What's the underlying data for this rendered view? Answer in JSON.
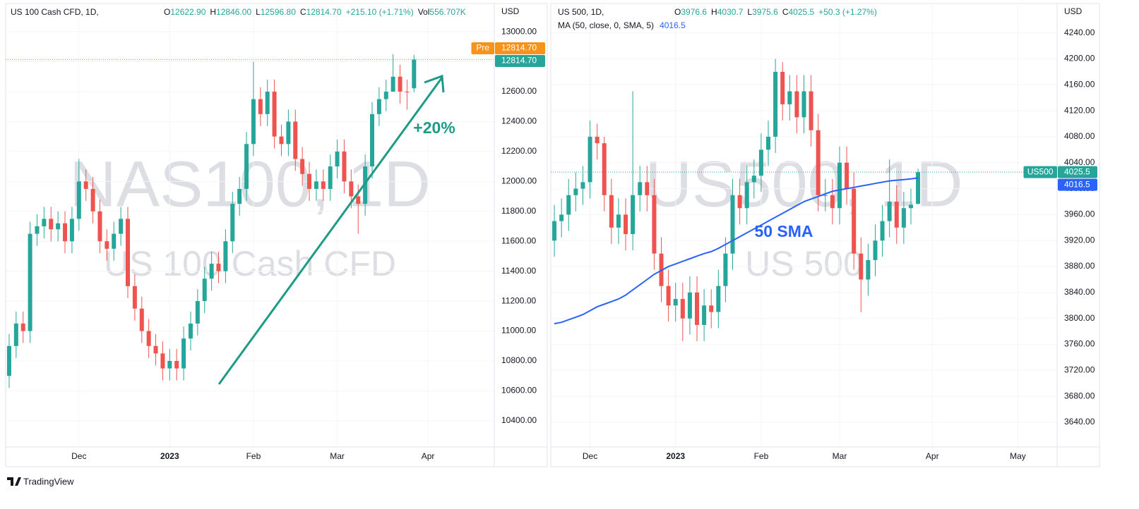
{
  "chart_data": [
    {
      "type": "candlestick",
      "symbol": "US 100 Cash CFD, 1D,",
      "legend": [
        {
          "key": "O",
          "value": "12622.90"
        },
        {
          "key": "H",
          "value": "12846.00"
        },
        {
          "key": "L",
          "value": "12596.80"
        },
        {
          "key": "C",
          "value": "12814.70"
        },
        {
          "value": "+215.10 (+1.71%)"
        },
        {
          "key": "Vol",
          "value": "556.707K"
        }
      ],
      "watermark": [
        "NAS100, 1D",
        "US 100 Cash CFD"
      ],
      "axis_unit": "USD",
      "up_color": "#26a69a",
      "down_color": "#ef5350",
      "grid": true,
      "ylim": [
        10225,
        13175
      ],
      "yticks": [
        {
          "value": 10400,
          "label": "10400.00"
        },
        {
          "value": 10600,
          "label": "10600.00"
        },
        {
          "value": 10800,
          "label": "10800.00"
        },
        {
          "value": 11000,
          "label": "11000.00"
        },
        {
          "value": 11200,
          "label": "11200.00"
        },
        {
          "value": 11400,
          "label": "11400.00"
        },
        {
          "value": 11600,
          "label": "11600.00"
        },
        {
          "value": 11800,
          "label": "11800.00"
        },
        {
          "value": 12000,
          "label": "12000.00"
        },
        {
          "value": 12200,
          "label": "12200.00"
        },
        {
          "value": 12400,
          "label": "12400.00"
        },
        {
          "value": 12600,
          "label": "12600.00"
        },
        {
          "value": 12800,
          "label": "12800.00"
        },
        {
          "value": 13000,
          "label": "13000.00"
        }
      ],
      "categories": [
        null,
        null,
        null,
        null,
        null,
        null,
        null,
        null,
        null,
        null,
        "Dec",
        null,
        null,
        null,
        null,
        null,
        null,
        null,
        null,
        null,
        null,
        null,
        null,
        "2023",
        null,
        null,
        null,
        null,
        null,
        null,
        null,
        null,
        null,
        null,
        null,
        "Feb",
        null,
        null,
        null,
        null,
        null,
        null,
        null,
        null,
        null,
        null,
        null,
        "Mar",
        null,
        null,
        null,
        null,
        null,
        null,
        null,
        null,
        null,
        null,
        null,
        null,
        "Apr",
        null,
        null,
        null,
        null,
        null,
        null,
        null,
        null,
        null
      ],
      "open": [
        10700,
        10900,
        11050,
        11000,
        11650,
        11700,
        11750,
        11680,
        11720,
        11600,
        11750,
        12000,
        11950,
        11800,
        11600,
        11550,
        11650,
        11750,
        11300,
        11150,
        11000,
        10900,
        10850,
        10750,
        10800,
        10750,
        10950,
        11050,
        11200,
        11350,
        11450,
        11400,
        11600,
        11850,
        11950,
        12250,
        12550,
        12450,
        12600,
        12300,
        12250,
        12400,
        12150,
        12050,
        11950,
        12000,
        11950,
        12100,
        12200,
        12000,
        11900,
        11850,
        12100,
        12450,
        12550,
        12600,
        12700,
        12600,
        12622.9,
        null,
        null,
        null,
        null,
        null,
        null,
        null,
        null,
        null,
        null,
        null
      ],
      "high": [
        10980,
        11130,
        11130,
        11730,
        11780,
        11830,
        11830,
        11800,
        11800,
        11830,
        12150,
        12080,
        12030,
        11880,
        11680,
        11730,
        11830,
        11830,
        11380,
        11230,
        11080,
        10980,
        10930,
        10880,
        10880,
        11030,
        11130,
        11280,
        11430,
        11530,
        11530,
        11680,
        11930,
        12030,
        12330,
        12800,
        12630,
        12680,
        12680,
        12380,
        12480,
        12480,
        12230,
        12130,
        12080,
        12080,
        12180,
        12280,
        12280,
        12080,
        11980,
        12180,
        12530,
        12630,
        12680,
        12850,
        12780,
        12680,
        12846,
        null,
        null,
        null,
        null,
        null,
        null,
        null,
        null,
        null,
        null,
        null
      ],
      "low": [
        10620,
        10820,
        10920,
        10920,
        11570,
        11620,
        11600,
        11600,
        11520,
        11520,
        11670,
        11870,
        11720,
        11520,
        11470,
        11470,
        11570,
        11220,
        11070,
        10920,
        10820,
        10770,
        10670,
        10670,
        10670,
        10670,
        10870,
        10970,
        11120,
        11270,
        11320,
        11320,
        11520,
        11770,
        11870,
        12170,
        12370,
        12370,
        12220,
        12170,
        12170,
        12070,
        11970,
        11870,
        11870,
        11870,
        11870,
        12020,
        11920,
        11820,
        11650,
        11770,
        12020,
        12370,
        12470,
        12620,
        12520,
        12480,
        12596.8,
        null,
        null,
        null,
        null,
        null,
        null,
        null,
        null,
        null,
        null,
        null
      ],
      "close": [
        10900,
        11050,
        11000,
        11650,
        11700,
        11750,
        11680,
        11720,
        11600,
        11750,
        12000,
        11950,
        11800,
        11600,
        11550,
        11650,
        11750,
        11300,
        11150,
        11000,
        10900,
        10850,
        10750,
        10800,
        10750,
        10950,
        11050,
        11200,
        11350,
        11450,
        11400,
        11600,
        11850,
        11950,
        12250,
        12550,
        12450,
        12600,
        12300,
        12250,
        12400,
        12150,
        12050,
        11950,
        12000,
        11950,
        12100,
        12200,
        12000,
        11900,
        11850,
        12100,
        12450,
        12550,
        12600,
        12700,
        12600,
        12599.6,
        12814.7,
        null,
        null,
        null,
        null,
        null,
        null,
        null,
        null,
        null,
        null,
        null
      ],
      "price_labels": [
        {
          "tag": "Pre",
          "value": 12814.7,
          "label": "12814.70",
          "color": "#f7931a"
        },
        {
          "value": 12814.7,
          "label": "12814.70",
          "color": "#26a69a"
        }
      ],
      "annotations": [
        {
          "text": "+20%",
          "color": "#1e9b86"
        }
      ]
    },
    {
      "type": "candlestick",
      "symbol": "US 500, 1D,",
      "legend": [
        {
          "key": "O",
          "value": "3976.6"
        },
        {
          "key": "H",
          "value": "4030.7"
        },
        {
          "key": "L",
          "value": "3975.6"
        },
        {
          "key": "C",
          "value": "4025.5"
        },
        {
          "value": "+50.3 (+1.27%)"
        }
      ],
      "watermark": [
        "US500, 1D",
        "US 500"
      ],
      "axis_unit": "USD",
      "up_color": "#26a69a",
      "down_color": "#ef5350",
      "grid": true,
      "ylim": [
        3602,
        4282
      ],
      "yticks": [
        {
          "value": 3640,
          "label": "3640.00"
        },
        {
          "value": 3680,
          "label": "3680.00"
        },
        {
          "value": 3720,
          "label": "3720.00"
        },
        {
          "value": 3760,
          "label": "3760.00"
        },
        {
          "value": 3800,
          "label": "3800.00"
        },
        {
          "value": 3840,
          "label": "3840.00"
        },
        {
          "value": 3880,
          "label": "3880.00"
        },
        {
          "value": 3920,
          "label": "3920.00"
        },
        {
          "value": 3960,
          "label": "3960.00"
        },
        {
          "value": 4000,
          "label": "4000.00"
        },
        {
          "value": 4040,
          "label": "4040.00"
        },
        {
          "value": 4080,
          "label": "4080.00"
        },
        {
          "value": 4120,
          "label": "4120.00"
        },
        {
          "value": 4160,
          "label": "4160.00"
        },
        {
          "value": 4200,
          "label": "4200.00"
        },
        {
          "value": 4240,
          "label": "4240.00"
        }
      ],
      "categories": [
        null,
        null,
        null,
        null,
        null,
        "Dec",
        null,
        null,
        null,
        null,
        null,
        null,
        null,
        null,
        null,
        null,
        null,
        "2023",
        null,
        null,
        null,
        null,
        null,
        null,
        null,
        null,
        null,
        null,
        null,
        "Feb",
        null,
        null,
        null,
        null,
        null,
        null,
        null,
        null,
        null,
        null,
        "Mar",
        null,
        null,
        null,
        null,
        null,
        null,
        null,
        null,
        null,
        null,
        null,
        null,
        "Apr",
        null,
        null,
        null,
        null,
        null,
        null,
        null,
        null,
        null,
        null,
        null,
        "May",
        null,
        null,
        null,
        null,
        null
      ],
      "open": [
        3920,
        3950,
        3960,
        3990,
        4000,
        4010,
        4080,
        4070,
        3990,
        3940,
        3960,
        3930,
        3990,
        4010,
        3990,
        3900,
        3850,
        3820,
        3830,
        3800,
        3840,
        3790,
        3820,
        3810,
        3850,
        3900,
        3990,
        3970,
        4010,
        4020,
        4060,
        4080,
        4180,
        4130,
        4150,
        4110,
        4150,
        4090,
        3990,
        3990,
        3970,
        4040,
        4000,
        3900,
        3860,
        3890,
        3920,
        3950,
        3980,
        3940,
        3970,
        3976.6,
        null,
        null,
        null,
        null,
        null,
        null,
        null,
        null,
        null,
        null,
        null,
        null,
        null,
        null,
        null,
        null,
        null,
        null,
        null
      ],
      "high": [
        3975,
        3985,
        4015,
        4025,
        4035,
        4105,
        4100,
        4080,
        4015,
        3985,
        3985,
        4150,
        4035,
        4035,
        4015,
        3925,
        3875,
        3855,
        3855,
        3865,
        3865,
        3845,
        3845,
        3875,
        3925,
        4015,
        4015,
        4035,
        4045,
        4085,
        4105,
        4200,
        4195,
        4175,
        4175,
        4175,
        4175,
        4115,
        4015,
        4015,
        4065,
        4065,
        4025,
        3925,
        3915,
        3945,
        3975,
        4045,
        4005,
        3995,
        4000,
        4030.7,
        null,
        null,
        null,
        null,
        null,
        null,
        null,
        null,
        null,
        null,
        null,
        null,
        null,
        null,
        null,
        null,
        null,
        null,
        null
      ],
      "low": [
        3895,
        3925,
        3935,
        3965,
        3975,
        3985,
        4045,
        3965,
        3915,
        3915,
        3905,
        3905,
        3965,
        3965,
        3875,
        3825,
        3795,
        3795,
        3765,
        3775,
        3765,
        3765,
        3785,
        3785,
        3825,
        3875,
        3945,
        3945,
        3985,
        3995,
        4035,
        4055,
        4105,
        4105,
        4085,
        4085,
        4065,
        3965,
        3965,
        3945,
        3945,
        3975,
        3875,
        3810,
        3835,
        3865,
        3895,
        3925,
        3915,
        3915,
        3945,
        3975.6,
        null,
        null,
        null,
        null,
        null,
        null,
        null,
        null,
        null,
        null,
        null,
        null,
        null,
        null,
        null,
        null,
        null,
        null,
        null
      ],
      "close": [
        3950,
        3960,
        3990,
        4000,
        4010,
        4080,
        4070,
        3990,
        3940,
        3960,
        3930,
        3990,
        4010,
        3990,
        3900,
        3850,
        3820,
        3830,
        3800,
        3840,
        3790,
        3820,
        3810,
        3850,
        3900,
        3990,
        3970,
        4010,
        4020,
        4060,
        4080,
        4180,
        4130,
        4150,
        4110,
        4150,
        4090,
        3990,
        3990,
        3970,
        4040,
        4000,
        3900,
        3860,
        3890,
        3920,
        3950,
        3980,
        3940,
        3970,
        3975.2,
        4025.5,
        null,
        null,
        null,
        null,
        null,
        null,
        null,
        null,
        null,
        null,
        null,
        null,
        null,
        null,
        null,
        null,
        null,
        null,
        null
      ],
      "lines": [
        {
          "name": "MA (50, close, 0, SMA, 5)",
          "legend_value": "4016.5",
          "color": "#2962ff",
          "values": [
            3792,
            3794,
            3798,
            3802,
            3806,
            3812,
            3818,
            3822,
            3826,
            3830,
            3836,
            3844,
            3852,
            3860,
            3868,
            3874,
            3880,
            3884,
            3888,
            3892,
            3896,
            3900,
            3903,
            3908,
            3914,
            3920,
            3926,
            3932,
            3938,
            3944,
            3950,
            3956,
            3962,
            3968,
            3974,
            3980,
            3984,
            3988,
            3992,
            3996,
            3998,
            4000,
            4002,
            4004,
            4006,
            4008,
            4010,
            4012,
            4013,
            4014,
            4015,
            4016.5,
            null,
            null,
            null,
            null,
            null,
            null,
            null,
            null,
            null,
            null,
            null,
            null,
            null,
            null,
            null,
            null,
            null,
            null,
            null
          ]
        }
      ],
      "price_labels": [
        {
          "tag": "US500",
          "value": 4025.5,
          "label": "4025.5",
          "color": "#26a69a"
        },
        {
          "value": 4016.5,
          "label": "4016.5",
          "color": "#2962ff"
        }
      ],
      "annotations": [
        {
          "text": "50 SMA",
          "color": "#2962ff"
        }
      ]
    }
  ],
  "footer": "TradingView"
}
